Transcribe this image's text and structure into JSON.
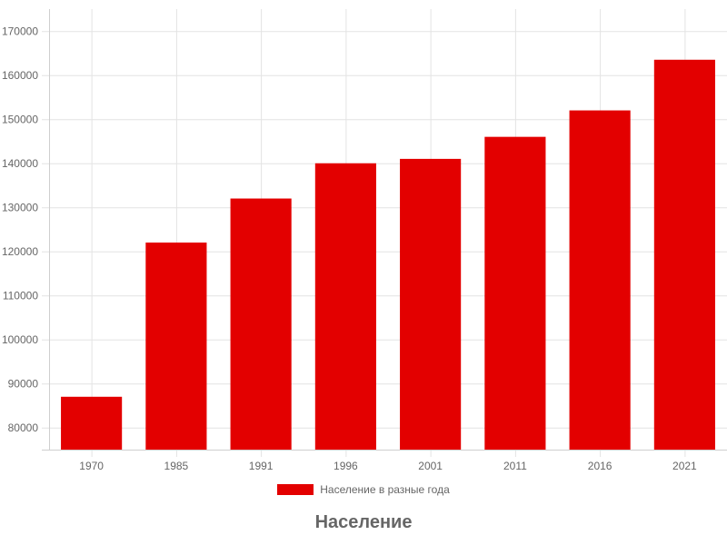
{
  "chart_data": {
    "type": "bar",
    "title": "Население",
    "xlabel": "",
    "ylabel": "",
    "categories": [
      "1970",
      "1985",
      "1991",
      "1996",
      "2001",
      "2011",
      "2016",
      "2021"
    ],
    "series": [
      {
        "name": "Население в разные года",
        "values": [
          87000,
          122000,
          132000,
          140000,
          141000,
          146000,
          152000,
          163500
        ],
        "color": "#e30000"
      }
    ],
    "ylim": [
      75000,
      175000
    ],
    "yticks": [
      80000,
      90000,
      100000,
      110000,
      120000,
      130000,
      140000,
      150000,
      160000,
      170000
    ],
    "grid": true,
    "legend_position": "bottom"
  }
}
